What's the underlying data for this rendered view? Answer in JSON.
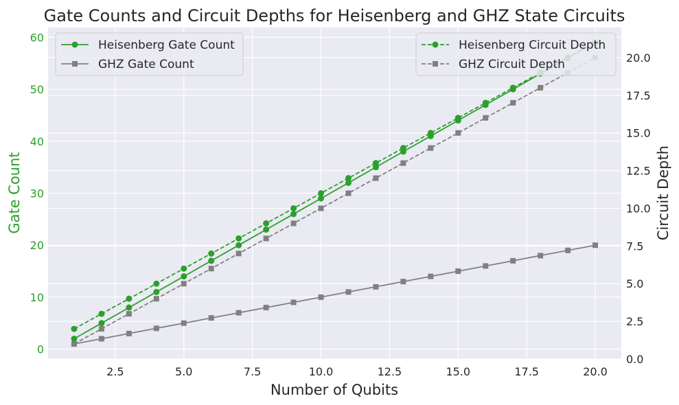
{
  "chart_data": {
    "type": "line",
    "title": "Gate Counts and Circuit Depths for Heisenberg and GHZ State Circuits",
    "xlabel": "Number of Qubits",
    "ylabel_left": "Gate Count",
    "ylabel_right": "Circuit Depth",
    "xlim": [
      0.05,
      20.95
    ],
    "ylim_left": [
      -1.9,
      61.9
    ],
    "ylim_right": [
      0,
      22
    ],
    "x_ticks": [
      "2.5",
      "5.0",
      "7.5",
      "10.0",
      "12.5",
      "15.0",
      "17.5",
      "20.0"
    ],
    "y_left_ticks": [
      "0",
      "10",
      "20",
      "30",
      "40",
      "50",
      "60"
    ],
    "y_right_ticks": [
      "0.0",
      "2.5",
      "5.0",
      "7.5",
      "10.0",
      "12.5",
      "15.0",
      "17.5",
      "20.0"
    ],
    "grid": true,
    "x": [
      1,
      2,
      3,
      4,
      5,
      6,
      7,
      8,
      9,
      10,
      11,
      12,
      13,
      14,
      15,
      16,
      17,
      18,
      19,
      20
    ],
    "series": [
      {
        "name": "Heisenberg Gate Count",
        "axis": "left",
        "style": "solid",
        "marker": "circle",
        "color": "#2ca02c",
        "values": [
          2,
          5,
          8,
          11,
          14,
          17,
          20,
          23,
          26,
          29,
          32,
          35,
          38,
          41,
          44,
          47,
          50,
          53,
          56,
          59
        ]
      },
      {
        "name": "GHZ Gate Count",
        "axis": "left",
        "style": "solid",
        "marker": "square",
        "color": "#808080",
        "values": [
          1,
          2,
          3,
          4,
          5,
          6,
          7,
          8,
          9,
          10,
          11,
          12,
          13,
          14,
          15,
          16,
          17,
          18,
          19,
          20
        ]
      },
      {
        "name": "Heisenberg Circuit Depth",
        "axis": "right",
        "style": "dashed",
        "marker": "circle",
        "color": "#2ca02c",
        "values": [
          2,
          3,
          4,
          5,
          6,
          7,
          8,
          9,
          10,
          11,
          12,
          13,
          14,
          15,
          16,
          17,
          18,
          19,
          20,
          21
        ]
      },
      {
        "name": "GHZ Circuit Depth",
        "axis": "right",
        "style": "dashed",
        "marker": "square",
        "color": "#808080",
        "values": [
          1,
          2,
          3,
          4,
          5,
          6,
          7,
          8,
          9,
          10,
          11,
          12,
          13,
          14,
          15,
          16,
          17,
          18,
          19,
          20
        ]
      }
    ],
    "legends": [
      {
        "placement": "top-left",
        "entries": [
          "Heisenberg Gate Count",
          "GHZ Gate Count"
        ]
      },
      {
        "placement": "top-right",
        "entries": [
          "Heisenberg Circuit Depth",
          "GHZ Circuit Depth"
        ]
      }
    ],
    "colors": {
      "background": "#eaeaf2",
      "grid": "#ffffff",
      "left_axis": "#2ca02c",
      "right_axis": "#262626"
    }
  }
}
